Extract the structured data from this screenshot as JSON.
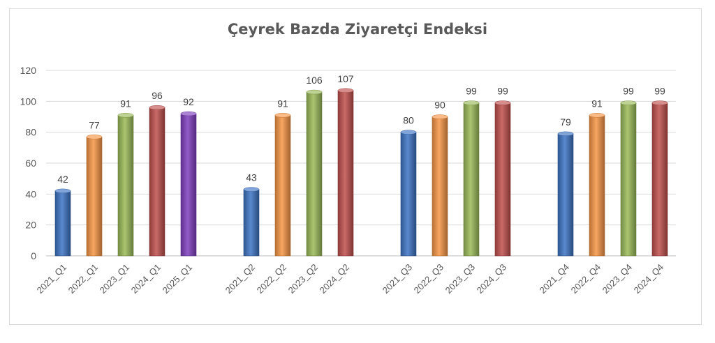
{
  "chart_data": {
    "type": "bar",
    "title": "Çeyrek Bazda Ziyaretçi Endeksi",
    "xlabel": "",
    "ylabel": "",
    "ylim": [
      0,
      120
    ],
    "yticks": [
      0,
      20,
      40,
      60,
      80,
      100,
      120
    ],
    "grid": true,
    "bar_style": "3d-cylinder",
    "year_colors": {
      "2021": "#3d74c4",
      "2022": "#f79646",
      "2023": "#9bbb59",
      "2024": "#c0504d",
      "2025": "#7f3fbf"
    },
    "groups": [
      {
        "categories": [
          "2021_Q1",
          "2022_Q1",
          "2023_Q1",
          "2024_Q1",
          "2025_Q1"
        ],
        "values": [
          42,
          77,
          91,
          96,
          92
        ]
      },
      {
        "categories": [
          "2021_Q2",
          "2022_Q2",
          "2023_Q2",
          "2024_Q2"
        ],
        "values": [
          43,
          91,
          106,
          107
        ]
      },
      {
        "categories": [
          "2021_Q3",
          "2022_Q3",
          "2023_Q3",
          "2024_Q3"
        ],
        "values": [
          80,
          90,
          99,
          99
        ]
      },
      {
        "categories": [
          "2021_Q4",
          "2022_Q4",
          "2023_Q4",
          "2024_Q4"
        ],
        "values": [
          79,
          91,
          99,
          99
        ]
      }
    ]
  }
}
